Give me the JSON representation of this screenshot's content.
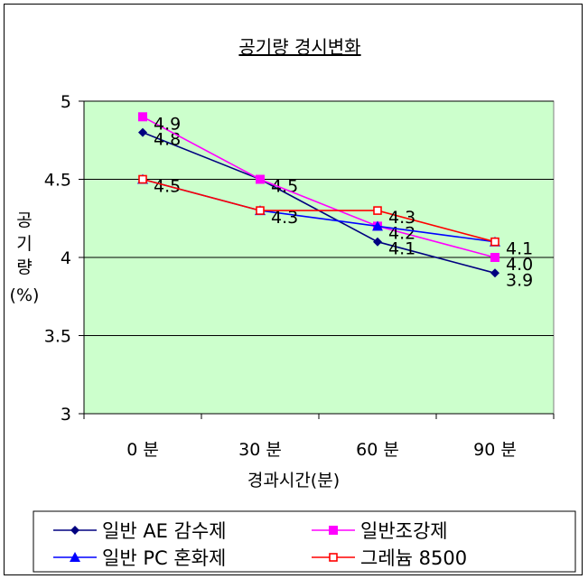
{
  "chart_data": {
    "type": "line",
    "title": "공기량 경시변화",
    "xlabel": "경과시간(분)",
    "ylabel": [
      "공",
      "기",
      "량",
      "(%)"
    ],
    "categories": [
      "0 분",
      "30 분",
      "60 분",
      "90 분"
    ],
    "ylim": [
      3,
      5
    ],
    "yticks": [
      "3",
      "3.5",
      "4",
      "4.5",
      "5"
    ],
    "grid": true,
    "legend_position": "bottom",
    "plot_background": "#ccffcc",
    "series": [
      {
        "name": "일반 AE 감수제",
        "color": "#000080",
        "marker": "diamond",
        "values": [
          4.8,
          4.5,
          4.1,
          3.9
        ],
        "labels": [
          "4.8",
          "4.5",
          "4.1",
          "3.9"
        ]
      },
      {
        "name": "일반조강제",
        "color": "#ff00ff",
        "marker": "square",
        "values": [
          4.9,
          4.5,
          4.2,
          4.0
        ],
        "labels": [
          "4.9",
          "",
          "4.2",
          "4.0"
        ]
      },
      {
        "name": "일반 PC 혼화제",
        "color": "#0000ff",
        "marker": "triangle",
        "values": [
          4.5,
          4.3,
          4.2,
          4.1
        ],
        "labels": [
          "4.5",
          "4.3",
          "",
          ""
        ]
      },
      {
        "name": "그레늄 8500",
        "color": "#ff0000",
        "marker": "open-square",
        "values": [
          4.5,
          4.3,
          4.3,
          4.1
        ],
        "labels": [
          "",
          "",
          "4.3",
          "4.1"
        ]
      }
    ]
  }
}
